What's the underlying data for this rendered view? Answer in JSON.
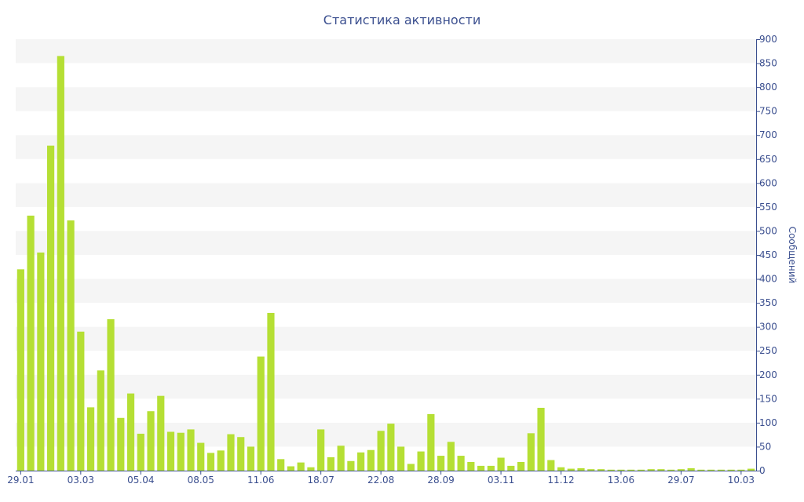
{
  "chart_data": {
    "type": "bar",
    "title": "Статистика активности",
    "xlabel": "",
    "ylabel": "Сообщений",
    "ylim": [
      0,
      900
    ],
    "y_ticks": [
      0,
      50,
      100,
      150,
      200,
      250,
      300,
      350,
      400,
      450,
      500,
      550,
      600,
      650,
      700,
      750,
      800,
      850,
      900
    ],
    "y_axis_side": "right",
    "grid": "alternating horizontal bands",
    "x_tick_labels": [
      {
        "index": 0,
        "label": "29.01"
      },
      {
        "index": 6,
        "label": "03.03"
      },
      {
        "index": 12,
        "label": "05.04"
      },
      {
        "index": 18,
        "label": "08.05"
      },
      {
        "index": 24,
        "label": "11.06"
      },
      {
        "index": 30,
        "label": "18.07"
      },
      {
        "index": 36,
        "label": "22.08"
      },
      {
        "index": 42,
        "label": "28.09"
      },
      {
        "index": 48,
        "label": "03.11"
      },
      {
        "index": 54,
        "label": "11.12"
      },
      {
        "index": 60,
        "label": "13.06"
      },
      {
        "index": 66,
        "label": "29.07"
      },
      {
        "index": 72,
        "label": "10.03"
      }
    ],
    "values": [
      420,
      532,
      455,
      678,
      865,
      522,
      290,
      132,
      209,
      316,
      110,
      161,
      77,
      124,
      156,
      81,
      79,
      86,
      58,
      37,
      42,
      76,
      70,
      50,
      238,
      329,
      24,
      9,
      17,
      7,
      86,
      28,
      52,
      20,
      38,
      43,
      83,
      98,
      50,
      14,
      40,
      118,
      31,
      60,
      31,
      18,
      10,
      10,
      27,
      10,
      18,
      78,
      131,
      22,
      7,
      4,
      5,
      3,
      3,
      2,
      2,
      2,
      2,
      3,
      3,
      2,
      3,
      5,
      2,
      2,
      2,
      2,
      2,
      4
    ],
    "colors": {
      "bar": "#b5df34",
      "band": "#f5f5f5",
      "axis": "#3b4f8f",
      "text": "#3b4f8f"
    }
  }
}
